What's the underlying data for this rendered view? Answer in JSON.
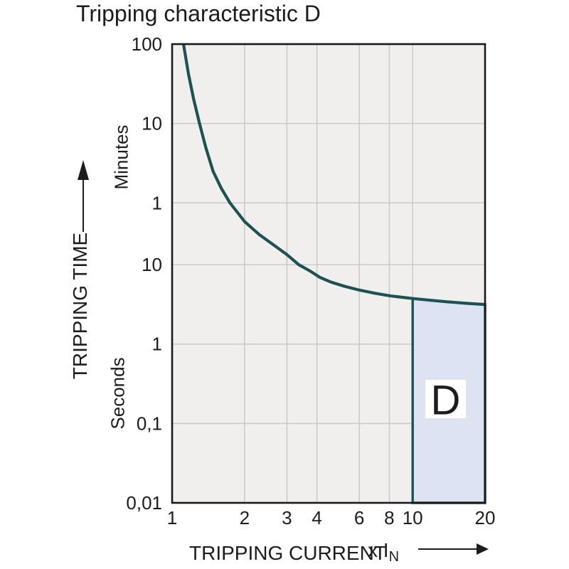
{
  "title": "Tripping characteristic D",
  "colors": {
    "curve": "#1e5252",
    "region_fill": "#dde3f3",
    "region_border": "#1e5252",
    "plot_bg": "#f0efed",
    "grid": "#c9c9c9",
    "frame": "#1a1a1a",
    "text": "#1c1c1c",
    "region_label_bg": "#ffffff"
  },
  "chart_data": {
    "type": "line",
    "title": "Tripping characteristic D",
    "grid": true,
    "x_axis": {
      "label": "TRIPPING CURRENT",
      "unit_prefix": "x I",
      "unit_sub": "N",
      "scale": "log",
      "range": [
        1,
        20
      ],
      "ticks": [
        "1",
        "2",
        "3",
        "4",
        "6",
        "8",
        "10",
        "20"
      ],
      "tick_values": [
        1,
        2,
        3,
        4,
        6,
        8,
        10,
        20
      ],
      "gridlines_at": [
        2,
        3,
        4,
        6,
        8,
        10
      ]
    },
    "y_axis": {
      "label": "TRIPPING TIME",
      "unit_top": "Minutes",
      "unit_bottom": "Seconds",
      "scale": "log",
      "range_seconds": [
        0.01,
        6000
      ],
      "ticks": [
        {
          "label": "100",
          "unit": "minutes",
          "seconds": 6000
        },
        {
          "label": "10",
          "unit": "minutes",
          "seconds": 600
        },
        {
          "label": "1",
          "unit": "minutes",
          "seconds": 60
        },
        {
          "label": "10",
          "unit": "seconds",
          "seconds": 10
        },
        {
          "label": "1",
          "unit": "seconds",
          "seconds": 1
        },
        {
          "label": "0,1",
          "unit": "seconds",
          "seconds": 0.1
        },
        {
          "label": "0,01",
          "unit": "seconds",
          "seconds": 0.01
        }
      ]
    },
    "series": [
      {
        "name": "tripping-curve",
        "points_x_in_multiples_of_In_y_in_seconds": true,
        "points": [
          [
            1.115,
            6000
          ],
          [
            1.17,
            2500
          ],
          [
            1.23,
            1200
          ],
          [
            1.3,
            600
          ],
          [
            1.38,
            300
          ],
          [
            1.48,
            150
          ],
          [
            1.6,
            92
          ],
          [
            1.74,
            60
          ],
          [
            2.0,
            35
          ],
          [
            2.3,
            24
          ],
          [
            2.65,
            17.6
          ],
          [
            3.0,
            13.4
          ],
          [
            3.36,
            10
          ],
          [
            3.75,
            8.3
          ],
          [
            4.12,
            6.9
          ],
          [
            4.6,
            6.0
          ],
          [
            5.2,
            5.35
          ],
          [
            5.93,
            4.83
          ],
          [
            7.0,
            4.35
          ],
          [
            8.1,
            4.04
          ],
          [
            9.0,
            3.89
          ],
          [
            10,
            3.75
          ],
          [
            12,
            3.55
          ],
          [
            14,
            3.4
          ],
          [
            17,
            3.25
          ],
          [
            20,
            3.15
          ]
        ]
      }
    ],
    "region": {
      "label": "D",
      "x_range": [
        10,
        20
      ],
      "bottom_seconds": 0.01,
      "top_follows_curve": true
    }
  }
}
